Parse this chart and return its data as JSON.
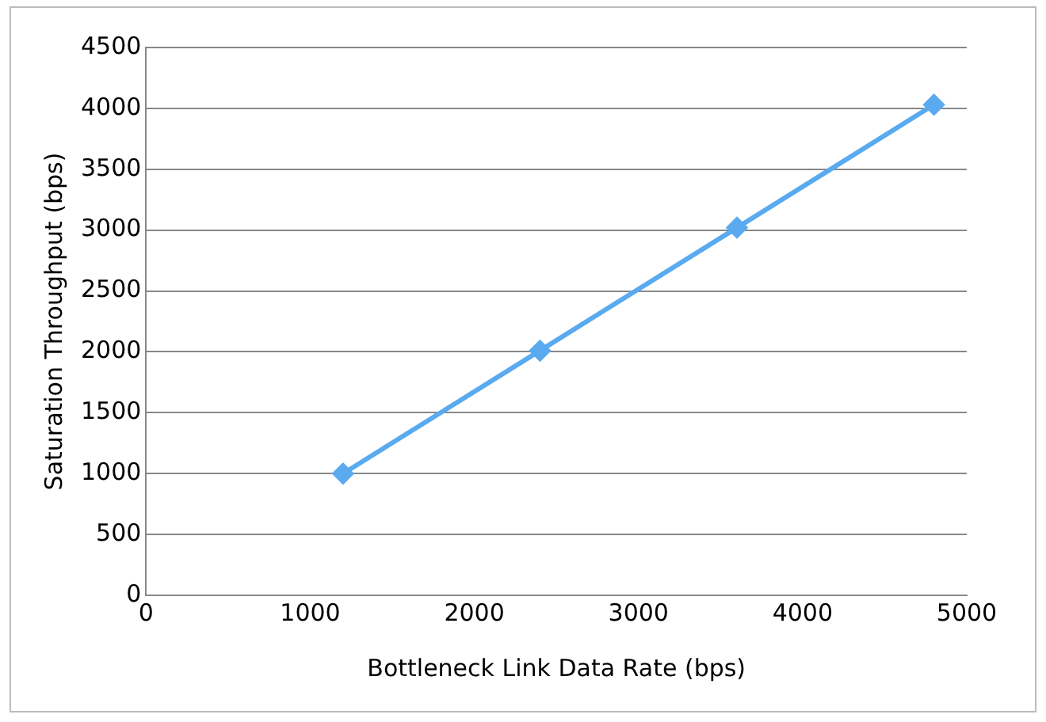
{
  "chart_data": {
    "type": "line",
    "xlabel": "Bottleneck Link Data Rate (bps)",
    "ylabel": "Saturation Throughput (bps)",
    "x": [
      1200,
      2400,
      3600,
      4800
    ],
    "series": [
      {
        "color": "#5aaaf0",
        "values": [
          1000,
          2010,
          3020,
          4030
        ]
      }
    ],
    "xlim": [
      0,
      5000
    ],
    "xticks": [
      0,
      1000,
      2000,
      3000,
      4000,
      5000
    ],
    "ylim": [
      0,
      4500
    ],
    "yticks": [
      0,
      500,
      1000,
      1500,
      2000,
      2500,
      3000,
      3500,
      4000,
      4500
    ],
    "grid": "y",
    "legend": false,
    "marker": "diamond",
    "line_style": "solid"
  }
}
